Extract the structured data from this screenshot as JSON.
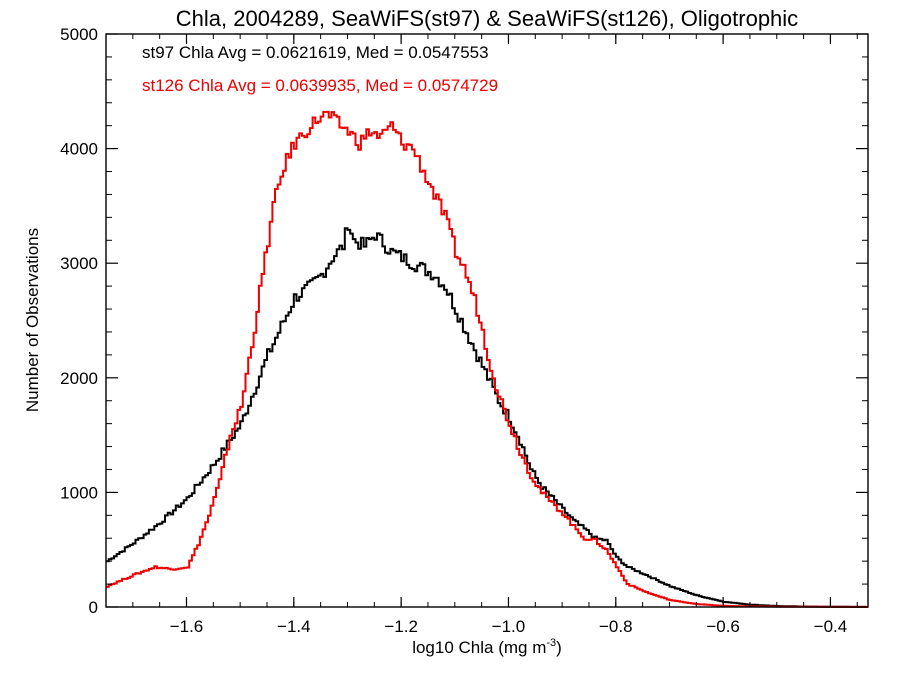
{
  "chart_data": {
    "type": "line",
    "step": true,
    "title": "Chla, 2004289, SeaWiFS(st97) & SeaWiFS(st126), Oligotrophic",
    "xlabel": "log10 Chla (mg m",
    "xlabel_sup": "-3",
    "xlabel_end": ")",
    "ylabel": "Number of Observations",
    "xlim": [
      -1.75,
      -0.33
    ],
    "ylim": [
      0,
      5000
    ],
    "x_ticks": [
      -1.6,
      -1.4,
      -1.2,
      -1.0,
      -0.8,
      -0.6,
      -0.4
    ],
    "x_tick_labels": [
      "−1.6",
      "−1.4",
      "−1.2",
      "−1.0",
      "−0.8",
      "−0.6",
      "−0.4"
    ],
    "y_ticks": [
      0,
      1000,
      2000,
      3000,
      4000,
      5000
    ],
    "y_tick_labels": [
      "0",
      "1000",
      "2000",
      "3000",
      "4000",
      "5000"
    ],
    "grid": false,
    "annotations": [
      {
        "text": "st97 Chla Avg = 0.0621619, Med = 0.0547553",
        "color": "#000000"
      },
      {
        "text": "st126 Chla Avg = 0.0639935, Med = 0.0574729",
        "color": "#ee0000"
      }
    ],
    "series": [
      {
        "color": "#000000",
        "x": [
          -1.75,
          -1.7,
          -1.65,
          -1.6,
          -1.55,
          -1.5,
          -1.45,
          -1.42,
          -1.4,
          -1.37,
          -1.35,
          -1.33,
          -1.31,
          -1.3,
          -1.29,
          -1.27,
          -1.25,
          -1.24,
          -1.22,
          -1.2,
          -1.18,
          -1.16,
          -1.14,
          -1.12,
          -1.1,
          -1.08,
          -1.06,
          -1.04,
          -1.02,
          -1.0,
          -0.98,
          -0.96,
          -0.94,
          -0.92,
          -0.9,
          -0.88,
          -0.86,
          -0.84,
          -0.82,
          -0.8,
          -0.78,
          -0.75,
          -0.7,
          -0.65,
          -0.6,
          -0.55,
          -0.5,
          -0.45,
          -0.4,
          -0.35,
          -0.33
        ],
        "y": [
          400,
          560,
          740,
          950,
          1250,
          1600,
          2200,
          2500,
          2700,
          2800,
          2900,
          3050,
          3150,
          3350,
          3200,
          3150,
          3250,
          3200,
          3100,
          3050,
          3000,
          2950,
          2900,
          2800,
          2600,
          2400,
          2200,
          2000,
          1800,
          1650,
          1450,
          1200,
          1050,
          950,
          850,
          750,
          680,
          600,
          580,
          430,
          350,
          290,
          180,
          100,
          45,
          20,
          8,
          4,
          2,
          1,
          0
        ]
      },
      {
        "color": "#ee0000",
        "x": [
          -1.75,
          -1.7,
          -1.66,
          -1.63,
          -1.6,
          -1.58,
          -1.56,
          -1.54,
          -1.52,
          -1.5,
          -1.48,
          -1.46,
          -1.44,
          -1.42,
          -1.4,
          -1.38,
          -1.36,
          -1.34,
          -1.32,
          -1.3,
          -1.28,
          -1.26,
          -1.24,
          -1.22,
          -1.2,
          -1.18,
          -1.16,
          -1.14,
          -1.12,
          -1.1,
          -1.08,
          -1.06,
          -1.04,
          -1.02,
          -1.0,
          -0.98,
          -0.96,
          -0.94,
          -0.92,
          -0.9,
          -0.88,
          -0.86,
          -0.84,
          -0.82,
          -0.8,
          -0.78,
          -0.76,
          -0.74,
          -0.72,
          -0.7,
          -0.65,
          -0.6,
          -0.55,
          -0.5,
          -0.45,
          -0.4,
          -0.35,
          -0.33
        ],
        "y": [
          180,
          280,
          350,
          330,
          350,
          550,
          800,
          1100,
          1500,
          1750,
          2300,
          2900,
          3500,
          3850,
          4050,
          4150,
          4250,
          4300,
          4220,
          4150,
          4050,
          4150,
          4100,
          4200,
          4050,
          4000,
          3800,
          3600,
          3400,
          3100,
          2900,
          2600,
          2200,
          1850,
          1600,
          1350,
          1150,
          1000,
          900,
          820,
          700,
          600,
          580,
          500,
          350,
          200,
          160,
          120,
          90,
          60,
          25,
          10,
          5,
          3,
          2,
          1,
          1,
          0
        ]
      }
    ]
  }
}
